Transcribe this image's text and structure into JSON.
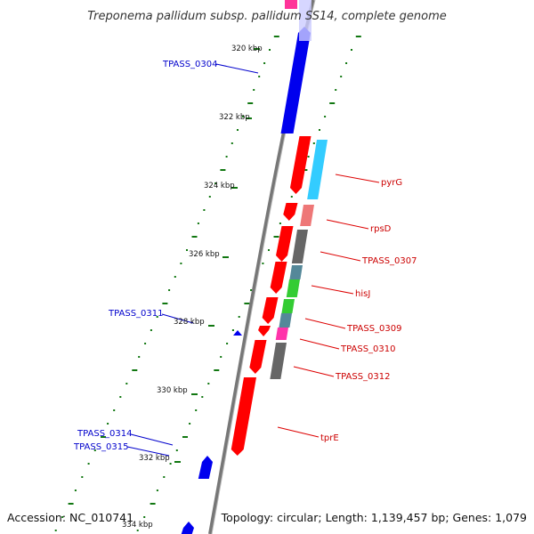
{
  "title": "Treponema pallidum subsp. pallidum SS14, complete genome",
  "footer": {
    "accession": "Accession: NC_010741",
    "stats": "Topology: circular; Length: 1,139,457 bp; Genes: 1,079"
  },
  "colors": {
    "forward_cds": "#ff0000",
    "reverse_cds": "#0000ff",
    "backbone": "#888888",
    "gc_ticks": "#006600",
    "forward_label": "#cc0000",
    "reverse_label": "#0000cc"
  },
  "scale_labels": [
    "320 kbp",
    "322 kbp",
    "324 kbp",
    "326 kbp",
    "328 kbp",
    "330 kbp",
    "332 kbp",
    "334 kbp"
  ],
  "forward_labels": [
    "pyrG",
    "rpsD",
    "TPASS_0307",
    "hisJ",
    "TPASS_0309",
    "TPASS_0310",
    "TPASS_0312",
    "tprE"
  ],
  "reverse_labels": [
    "TPASS_0304",
    "TPASS_0311",
    "TPASS_0314",
    "TPASS_0315"
  ]
}
